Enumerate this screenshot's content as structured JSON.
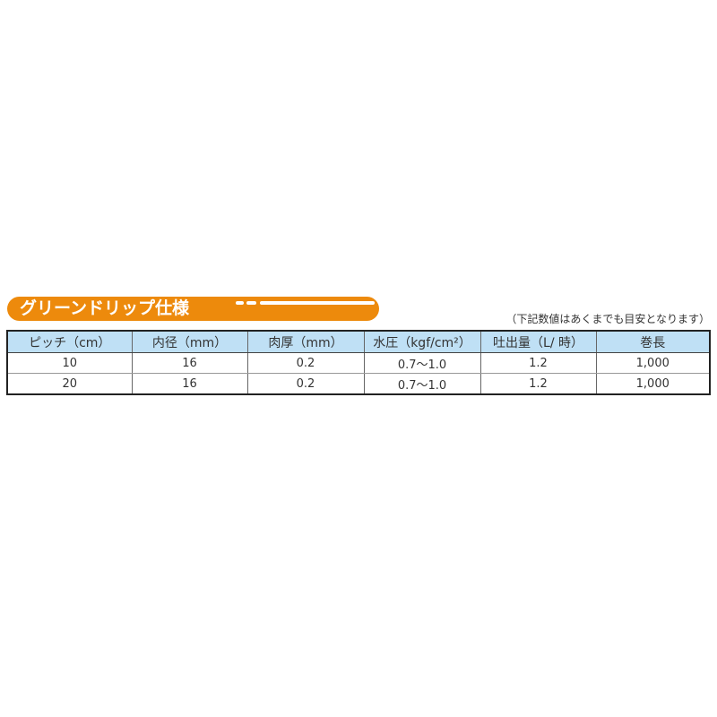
{
  "banner": {
    "title": "グリーンドリップ仕様",
    "color": "#ED8A0C"
  },
  "note": "（下記数値はあくまでも目安となります）",
  "table": {
    "headers": [
      "ピッチ（cm）",
      "内径（mm）",
      "肉厚（mm）",
      "水圧（kgf/cm²）",
      "吐出量（L/ 時）",
      "巻長"
    ],
    "rows": [
      [
        "10",
        "16",
        "0.2",
        "0.7〜1.0",
        "1.2",
        "1,000"
      ],
      [
        "20",
        "16",
        "0.2",
        "0.7〜1.0",
        "1.2",
        "1,000"
      ]
    ],
    "header_color": "#BFE0F5"
  }
}
